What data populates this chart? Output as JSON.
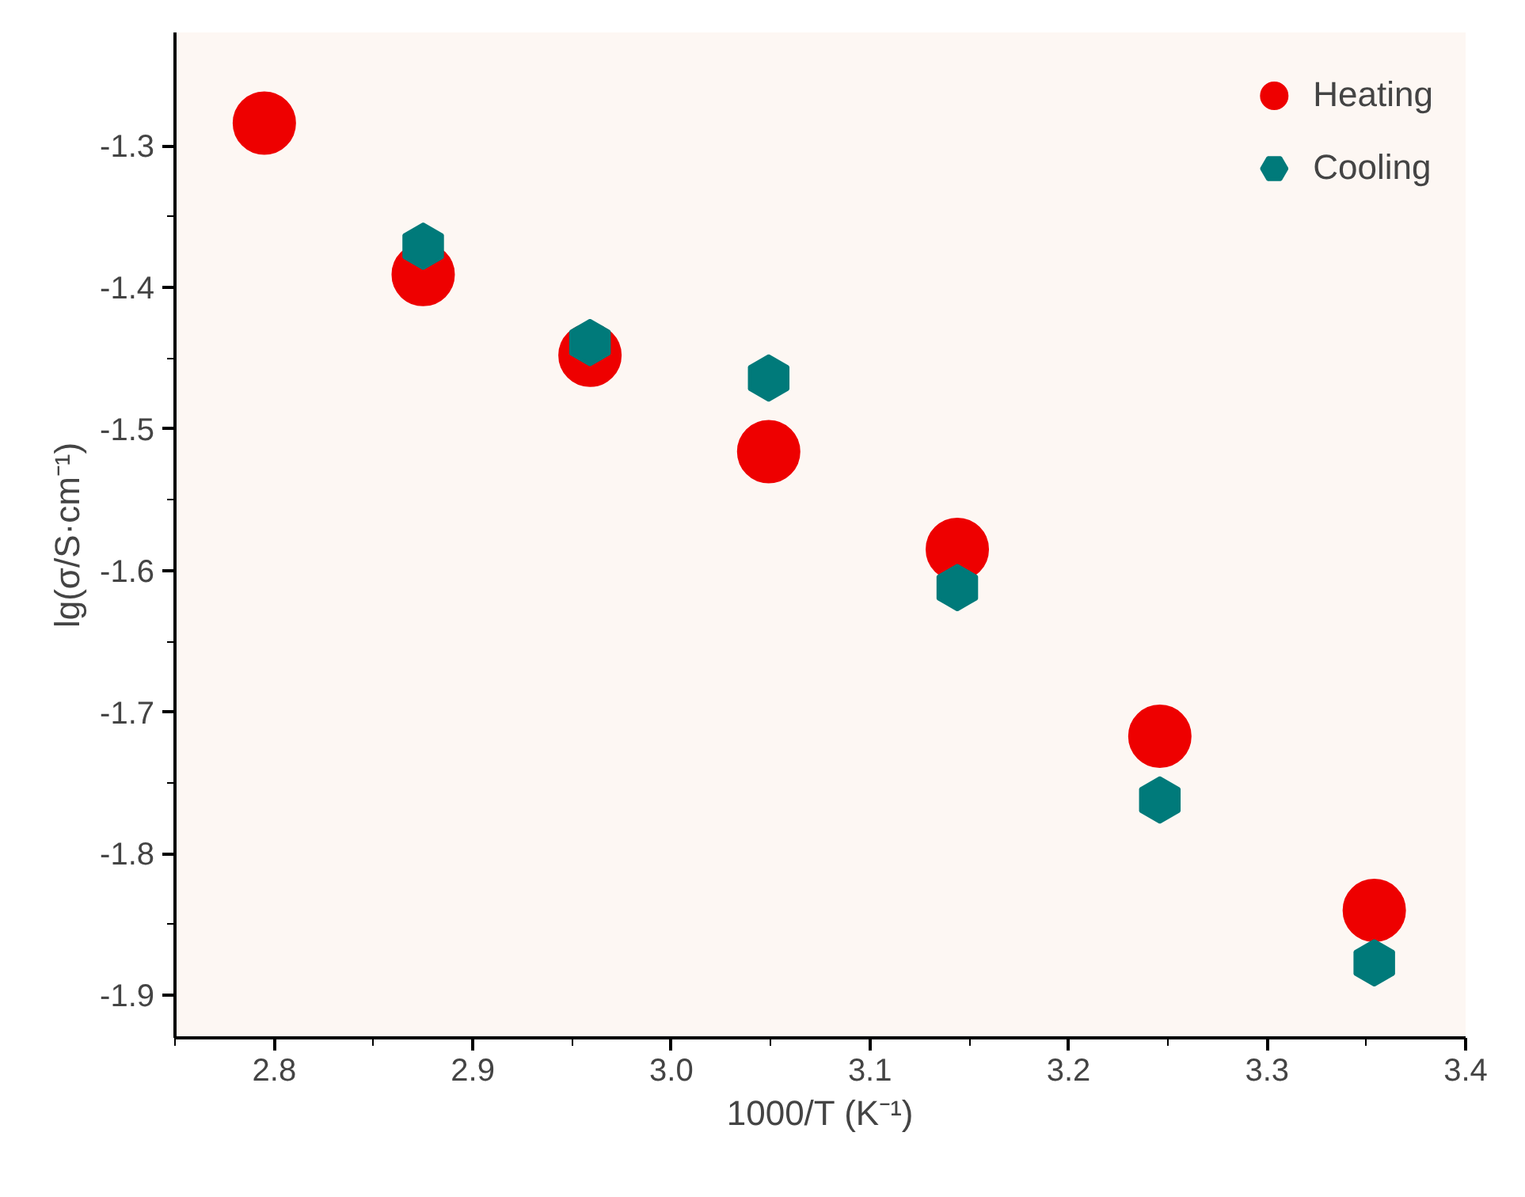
{
  "chart_data": {
    "type": "scatter",
    "xlabel": "1000/T (K⁻¹)",
    "ylabel": "lg(σ/S·cm⁻¹)",
    "xlim": [
      2.75,
      3.4
    ],
    "xticks": [
      2.8,
      2.9,
      {
        "value": 3.0,
        "label": "3.0"
      },
      3.1,
      3.2,
      3.3,
      3.4
    ],
    "ylim": [
      -1.93,
      -1.22
    ],
    "yticks": [
      -1.9,
      -1.8,
      -1.7,
      -1.6,
      -1.5,
      -1.4,
      -1.3
    ],
    "legend": "top right",
    "grid": false,
    "series": [
      {
        "name": "Heating",
        "color": "#ee0000",
        "marker": "circle",
        "x": [
          2.795,
          2.875,
          2.959,
          3.049,
          3.144,
          3.246,
          3.354
        ],
        "values": [
          -1.284,
          -1.391,
          -1.448,
          -1.516,
          -1.585,
          -1.717,
          -1.84
        ]
      },
      {
        "name": "Cooling",
        "color": "#007a7a",
        "x": [
          2.875,
          2.959,
          3.049,
          3.144,
          3.246,
          3.354
        ],
        "values": [
          -1.371,
          -1.439,
          -1.464,
          -1.612,
          -1.762,
          -1.877
        ]
      }
    ]
  }
}
